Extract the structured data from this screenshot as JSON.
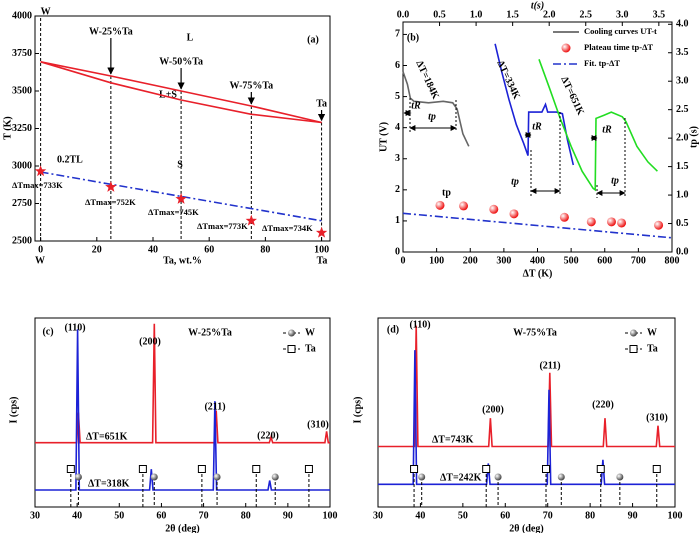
{
  "chart_data": [
    {
      "type": "line",
      "panel_label": "(a)",
      "ylabel": "T (K)",
      "xlabel": "Ta, wt.%",
      "x_end_labels": [
        "W",
        "Ta"
      ],
      "compositions": [
        "W",
        "W-25%Ta",
        "W-50%Ta",
        "W-75%Ta",
        "Ta"
      ],
      "phase_labels": [
        "L",
        "L+S",
        "S"
      ],
      "x": [
        0,
        25,
        50,
        75,
        100
      ],
      "series": [
        {
          "color": "#e8202a",
          "values": [
            3695,
            3600,
            3500,
            3400,
            3290
          ]
        },
        {
          "color": "#e8202a",
          "values": [
            3695,
            3555,
            3440,
            3345,
            3290
          ]
        },
        {
          "label": "0.2TL",
          "color": "#2233cc",
          "dash": "dashdot",
          "values": [
            2960,
            2878,
            2797,
            2716,
            2635
          ]
        },
        {
          "color": "#e8202a",
          "marker": "star",
          "values": [
            2965,
            2860,
            2780,
            2635,
            2555
          ],
          "point_labels": [
            "ΔTmax=733K",
            "ΔTmax=752K",
            "ΔTmax=745K",
            "ΔTmax=773K",
            "ΔTmax=734K"
          ]
        }
      ],
      "xlim": [
        -2,
        103
      ],
      "xticks": [
        0,
        20,
        40,
        60,
        80,
        100
      ],
      "ylim": [
        2500,
        4000
      ],
      "yticks": [
        2500,
        2750,
        3000,
        3250,
        3500,
        3750,
        4000
      ]
    },
    {
      "type": "line",
      "panel_label": "(b)",
      "xlabel": "ΔT (K)",
      "ylabel": "UT (V)",
      "x2label": "t(s)",
      "y2label": "tp (s)",
      "legend_extra": [
        {
          "name": "Cooling curves UT-t",
          "color": "#666666"
        }
      ],
      "annotations": [
        "tR",
        "tp",
        "tR",
        "tp",
        "tR",
        "tp"
      ],
      "series": [
        {
          "label": "ΔT=184K",
          "color": "#666666",
          "xaxis": "x2",
          "x": [
            0.0,
            0.06,
            0.1,
            0.15,
            0.35,
            0.55,
            0.68,
            0.74,
            0.82,
            0.9
          ],
          "values": [
            5.8,
            5.4,
            4.95,
            4.85,
            4.8,
            4.85,
            4.8,
            4.6,
            3.8,
            3.4
          ]
        },
        {
          "label": "ΔT=334K",
          "color": "#1c22d6",
          "xaxis": "x2",
          "x": [
            1.26,
            1.35,
            1.45,
            1.55,
            1.65,
            1.71,
            1.72,
            1.9,
            1.95,
            1.98,
            2.1,
            2.18,
            2.25,
            2.33
          ],
          "values": [
            6.7,
            5.8,
            4.9,
            4.1,
            3.5,
            3.1,
            4.5,
            4.5,
            4.75,
            4.5,
            4.5,
            4.45,
            3.6,
            2.8
          ]
        },
        {
          "label": "ΔT=651K",
          "color": "#22dd22",
          "xaxis": "x2",
          "x": [
            1.86,
            2.0,
            2.15,
            2.3,
            2.45,
            2.6,
            2.63,
            2.64,
            2.75,
            2.85,
            3.0,
            3.05,
            3.2,
            3.35,
            3.48
          ],
          "values": [
            6.2,
            5.3,
            4.3,
            3.4,
            2.6,
            2.05,
            2.0,
            4.3,
            4.4,
            4.5,
            4.35,
            4.2,
            3.4,
            2.9,
            2.6
          ]
        },
        {
          "name": "Plateau time tp-ΔT",
          "label": "tp",
          "color": "#ee1111",
          "marker": "sphere",
          "axis": "y2",
          "x": [
            110,
            180,
            270,
            330,
            480,
            560,
            620,
            650,
            760
          ],
          "values": [
            0.82,
            0.81,
            0.75,
            0.67,
            0.61,
            0.53,
            0.53,
            0.51,
            0.47
          ]
        },
        {
          "name": "Fit. tp-ΔT",
          "color": "#2233cc",
          "dash": "dashdot",
          "axis": "y2",
          "x": [
            0,
            800
          ],
          "values": [
            0.68,
            0.25
          ]
        }
      ],
      "xlim": [
        0,
        800
      ],
      "xticks": [
        0,
        100,
        200,
        300,
        400,
        500,
        600,
        700,
        800
      ],
      "x2lim": [
        0,
        3.68
      ],
      "x2ticks": [
        {
          "value": 0,
          "label": "0.0"
        },
        0.5,
        {
          "value": 1,
          "label": "1.0"
        },
        1.5,
        {
          "value": 2,
          "label": "2.0"
        },
        2.5,
        {
          "value": 3,
          "label": "3.0"
        },
        3.5
      ],
      "ylim": [
        0,
        7.4
      ],
      "yticks": [
        0,
        1,
        2,
        3,
        4,
        5,
        6,
        7
      ],
      "y2lim": [
        0,
        4.04
      ],
      "y2ticks": [
        {
          "value": 0,
          "label": "0.0"
        },
        0.5,
        {
          "value": 1,
          "label": "1.0"
        },
        1.5,
        {
          "value": 2,
          "label": "2.0"
        },
        2.5,
        {
          "value": 3,
          "label": "3.0"
        },
        3.5,
        {
          "value": 4,
          "label": "4.0"
        }
      ]
    },
    {
      "type": "line",
      "panel_label": "(c)",
      "title": "W-25%Ta",
      "xlabel": "2θ (deg)",
      "ylabel": "I (cps)",
      "peak_labels": [
        "(110)",
        "(200)",
        "(211)",
        "(220)",
        "(310)"
      ],
      "series": [
        {
          "label": "ΔT=651K",
          "color": "#e8202a",
          "x": [
            30,
            39.9,
            40.3,
            40.7,
            57.9,
            58.3,
            58.7,
            72.6,
            73.0,
            73.4,
            85.6,
            86.0,
            86.4,
            98.8,
            99.2,
            99.6,
            100
          ],
          "values": [
            34,
            34,
            50,
            34,
            34,
            97,
            34,
            34,
            51,
            34,
            34,
            37,
            34,
            34,
            40,
            34,
            34
          ]
        },
        {
          "label": "ΔT=318K",
          "color": "#1c22d6",
          "x": [
            30,
            39.7,
            40.1,
            40.5,
            57.2,
            57.6,
            58.0,
            72.3,
            72.7,
            73.1,
            85.3,
            85.7,
            86.1,
            100
          ],
          "values": [
            9,
            9,
            94,
            9,
            9,
            20,
            9,
            9,
            56,
            9,
            9,
            14,
            9,
            9
          ]
        }
      ],
      "references": [
        {
          "name": "W",
          "marker": "sphere",
          "positions": [
            40.3,
            58.3,
            73.2,
            87.0
          ]
        },
        {
          "name": "Ta",
          "marker": "square",
          "positions": [
            38.5,
            55.6,
            69.6,
            82.5,
            95.0
          ]
        }
      ],
      "xlim": [
        30,
        100
      ],
      "xticks": [
        30,
        40,
        50,
        60,
        70,
        80,
        90,
        100
      ],
      "ylim": [
        0,
        100
      ]
    },
    {
      "type": "line",
      "panel_label": "(d)",
      "title": "W-75%Ta",
      "xlabel": "2θ (deg)",
      "ylabel": "I (cps)",
      "peak_labels": [
        "(110)",
        "(200)",
        "(211)",
        "(220)",
        "(310)"
      ],
      "series": [
        {
          "label": "ΔT=743K",
          "color": "#e8202a",
          "x": [
            30,
            38.6,
            39.0,
            39.4,
            56.1,
            56.5,
            56.9,
            70.1,
            70.5,
            70.9,
            83.1,
            83.5,
            83.9,
            95.6,
            96.0,
            96.4,
            100
          ],
          "values": [
            32,
            32,
            96,
            32,
            32,
            47,
            32,
            32,
            71,
            32,
            32,
            47,
            32,
            32,
            43,
            32,
            32
          ]
        },
        {
          "label": "ΔT=242K",
          "color": "#1c22d6",
          "x": [
            30,
            38.3,
            38.7,
            39.1,
            55.6,
            56.0,
            56.4,
            69.9,
            70.3,
            70.7,
            82.6,
            83.0,
            83.4,
            100
          ],
          "values": [
            12,
            12,
            83,
            12,
            12,
            23,
            12,
            12,
            62,
            12,
            12,
            25,
            12,
            12
          ]
        }
      ],
      "references": [
        {
          "name": "W",
          "marker": "sphere",
          "positions": [
            40.3,
            58.3,
            73.2,
            87.0
          ]
        },
        {
          "name": "Ta",
          "marker": "square",
          "positions": [
            38.5,
            55.5,
            69.6,
            82.5,
            95.7
          ]
        }
      ],
      "xlim": [
        30,
        100
      ],
      "xticks": [
        30,
        40,
        50,
        60,
        70,
        80,
        90,
        100
      ],
      "ylim": [
        0,
        100
      ]
    }
  ]
}
